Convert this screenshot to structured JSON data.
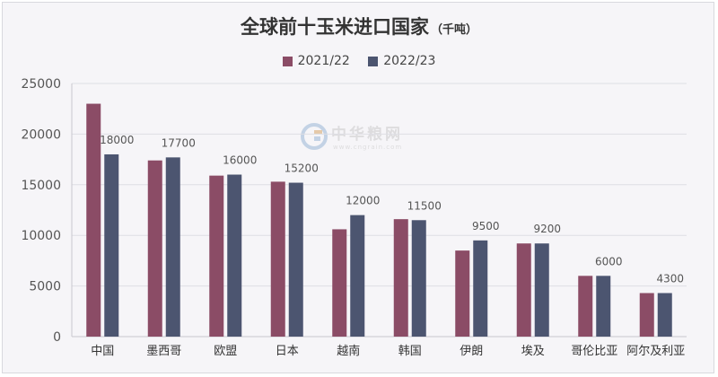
{
  "title": "全球前十玉米进口国家",
  "unit": "（千吨）",
  "watermark": {
    "name": "中华粮网",
    "url": "www.cngrain.com"
  },
  "colors": {
    "series1": "#8b4c66",
    "series2": "#4c5570",
    "grid": "#dedee4",
    "axis": "#c8c8ce"
  },
  "chart_data": {
    "type": "bar",
    "title": "全球前十玉米进口国家",
    "unit": "千吨",
    "categories": [
      "中国",
      "墨西哥",
      "欧盟",
      "日本",
      "越南",
      "韩国",
      "伊朗",
      "埃及",
      "哥伦比亚",
      "阿尔及利亚"
    ],
    "series": [
      {
        "name": "2021/22",
        "values": [
          23000,
          17400,
          15900,
          15300,
          10600,
          11600,
          8500,
          9200,
          6000,
          4300
        ]
      },
      {
        "name": "2022/23",
        "values": [
          18000,
          17700,
          16000,
          15200,
          12000,
          11500,
          9500,
          9200,
          6000,
          4300
        ]
      }
    ],
    "data_labels_series": 1,
    "ylim": [
      0,
      25000
    ],
    "yticks": [
      0,
      5000,
      10000,
      15000,
      20000,
      25000
    ],
    "grid": true,
    "legend_position": "top"
  }
}
